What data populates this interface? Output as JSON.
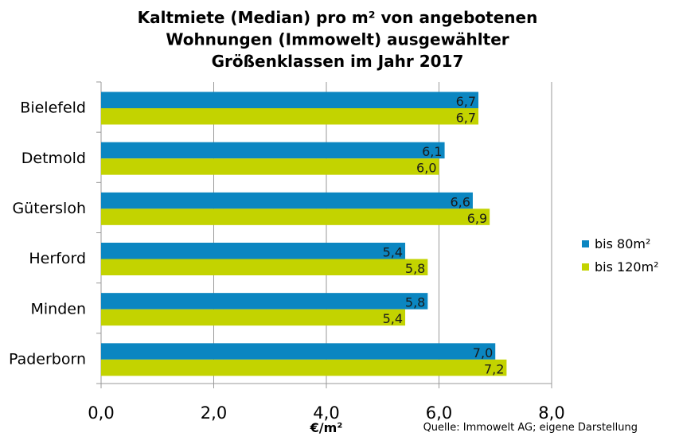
{
  "chart_data": {
    "type": "bar",
    "orientation": "horizontal",
    "title_lines": [
      "Kaltmiete (Median) pro m² von angebotenen",
      "Wohnungen (Immowelt) ausgewählter",
      "Größenklassen im Jahr 2017"
    ],
    "categories": [
      "Bielefeld",
      "Detmold",
      "Gütersloh",
      "Herford",
      "Minden",
      "Paderborn"
    ],
    "series": [
      {
        "name": "bis 80m²",
        "color": "#0b86c1",
        "values": [
          6.7,
          6.1,
          6.6,
          5.4,
          5.8,
          7.0
        ],
        "labels": [
          "6,7",
          "6,1",
          "6,6",
          "5,4",
          "5,8",
          "7,0"
        ]
      },
      {
        "name": "bis 120m²",
        "color": "#c3d300",
        "values": [
          6.7,
          6.0,
          6.9,
          5.8,
          5.4,
          7.2
        ],
        "labels": [
          "6,7",
          "6,0",
          "6,9",
          "5,8",
          "5,4",
          "7,2"
        ]
      }
    ],
    "xlabel": "€/m²",
    "xlim": [
      0,
      8
    ],
    "xticks": [
      0,
      2,
      4,
      6,
      8
    ],
    "xtick_labels": [
      "0,0",
      "2,0",
      "4,0",
      "6,0",
      "8,0"
    ],
    "grid": "vertical",
    "legend_position": "right",
    "source_note": "Quelle: Immowelt AG; eigene Darstellung"
  }
}
